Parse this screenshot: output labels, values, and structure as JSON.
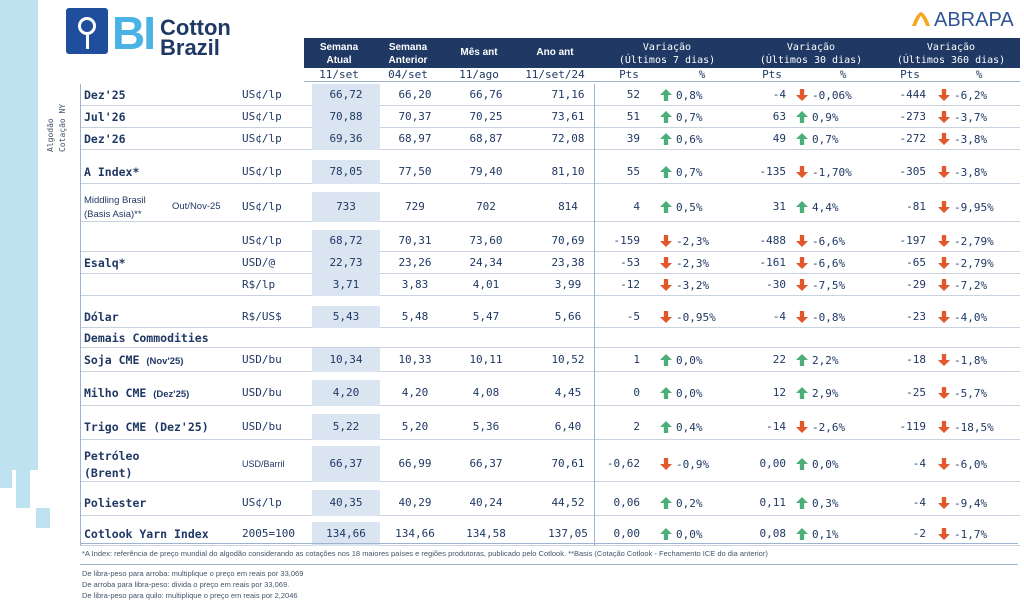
{
  "brand": {
    "bi": "BI",
    "cotton": "Cotton",
    "brazil": "Brazil",
    "abrapa": "ABRAPA"
  },
  "side_label": {
    "line1": "Algodão",
    "line2": "Cotação NY"
  },
  "headers": {
    "semana_atual": [
      "Semana",
      "Atual"
    ],
    "semana_anterior": [
      "Semana",
      "Anterior"
    ],
    "mes_ant": "Mês ant",
    "ano_ant": "Ano ant",
    "var7": [
      "Variação",
      "(Últimos 7 dias)"
    ],
    "var30": [
      "Variação",
      "(Últimos 30 dias)"
    ],
    "var360": [
      "Variação",
      "(Últimos 360 dias)"
    ]
  },
  "subheaders": {
    "d1": "11/set",
    "d2": "04/set",
    "d3": "11/ago",
    "d4": "11/set/24",
    "pts": "Pts",
    "pct": "%"
  },
  "rows": [
    {
      "label": "Dez'25",
      "unit": "US¢/lp",
      "v": [
        "66,72",
        "66,20",
        "66,76",
        "71,16"
      ],
      "p7": "52",
      "a7": "up",
      "v7": "0,8%",
      "p30": "-4",
      "a30": "down",
      "v30": "-0,06%",
      "p360": "-444",
      "a360": "down",
      "v360": "-6,2%"
    },
    {
      "label": "Jul'26",
      "unit": "US¢/lp",
      "v": [
        "70,88",
        "70,37",
        "70,25",
        "73,61"
      ],
      "p7": "51",
      "a7": "up",
      "v7": "0,7%",
      "p30": "63",
      "a30": "up",
      "v30": "0,9%",
      "p360": "-273",
      "a360": "down",
      "v360": "-3,7%"
    },
    {
      "label": "Dez'26",
      "unit": "US¢/lp",
      "v": [
        "69,36",
        "68,97",
        "68,87",
        "72,08"
      ],
      "p7": "39",
      "a7": "up",
      "v7": "0,6%",
      "p30": "49",
      "a30": "up",
      "v30": "0,7%",
      "p360": "-272",
      "a360": "down",
      "v360": "-3,8%"
    },
    {
      "label": "A Index*",
      "unit": "US¢/lp",
      "v": [
        "78,05",
        "77,50",
        "79,40",
        "81,10"
      ],
      "p7": "55",
      "a7": "up",
      "v7": "0,7%",
      "p30": "-135",
      "a30": "down",
      "v30": "-1,70%",
      "p360": "-305",
      "a360": "down",
      "v360": "-3,8%"
    },
    {
      "label": "Middling Brasil",
      "label2": "(Basis Asia)**",
      "extra": "Out/Nov-25",
      "unit": "US¢/lp",
      "v": [
        "733",
        "729",
        "702",
        "814"
      ],
      "p7": "4",
      "a7": "up",
      "v7": "0,5%",
      "p30": "31",
      "a30": "up",
      "v30": "4,4%",
      "p360": "-81",
      "a360": "down",
      "v360": "-9,95%"
    },
    {
      "label": "",
      "unit": "US¢/lp",
      "v": [
        "68,72",
        "70,31",
        "73,60",
        "70,69"
      ],
      "p7": "-159",
      "a7": "down",
      "v7": "-2,3%",
      "p30": "-488",
      "a30": "down",
      "v30": "-6,6%",
      "p360": "-197",
      "a360": "down",
      "v360": "-2,79%"
    },
    {
      "label": "Esalq*",
      "unit": "USD/@",
      "v": [
        "22,73",
        "23,26",
        "24,34",
        "23,38"
      ],
      "p7": "-53",
      "a7": "down",
      "v7": "-2,3%",
      "p30": "-161",
      "a30": "down",
      "v30": "-6,6%",
      "p360": "-65",
      "a360": "down",
      "v360": "-2,79%"
    },
    {
      "label": "",
      "unit": "R$/lp",
      "v": [
        "3,71",
        "3,83",
        "4,01",
        "3,99"
      ],
      "p7": "-12",
      "a7": "down",
      "v7": "-3,2%",
      "p30": "-30",
      "a30": "down",
      "v30": "-7,5%",
      "p360": "-29",
      "a360": "down",
      "v360": "-7,2%"
    },
    {
      "label": "Dólar",
      "unit": "R$/US$",
      "v": [
        "5,43",
        "5,48",
        "5,47",
        "5,66"
      ],
      "p7": "-5",
      "a7": "down",
      "v7": "-0,95%",
      "p30": "-4",
      "a30": "down",
      "v30": "-0,8%",
      "p360": "-23",
      "a360": "down",
      "v360": "-4,0%"
    },
    {
      "label": "Soja CME",
      "label_small": "(Nov'25)",
      "unit": "USD/bu",
      "v": [
        "10,34",
        "10,33",
        "10,11",
        "10,52"
      ],
      "p7": "1",
      "a7": "up",
      "v7": "0,0%",
      "p30": "22",
      "a30": "up",
      "v30": "2,2%",
      "p360": "-18",
      "a360": "down",
      "v360": "-1,8%"
    },
    {
      "label": "Milho CME",
      "label_small": "(Dez'25)",
      "unit": "USD/bu",
      "v": [
        "4,20",
        "4,20",
        "4,08",
        "4,45"
      ],
      "p7": "0",
      "a7": "up",
      "v7": "0,0%",
      "p30": "12",
      "a30": "up",
      "v30": "2,9%",
      "p360": "-25",
      "a360": "down",
      "v360": "-5,7%"
    },
    {
      "label": "Trigo CME (Dez'25)",
      "unit": "USD/bu",
      "v": [
        "5,22",
        "5,20",
        "5,36",
        "6,40"
      ],
      "p7": "2",
      "a7": "up",
      "v7": "0,4%",
      "p30": "-14",
      "a30": "down",
      "v30": "-2,6%",
      "p360": "-119",
      "a360": "down",
      "v360": "-18,5%"
    },
    {
      "label": "Petróleo",
      "label2": "(Brent)",
      "unit": "USD/Barril",
      "v": [
        "66,37",
        "66,99",
        "66,37",
        "70,61"
      ],
      "p7": "-0,62",
      "a7": "down",
      "v7": "-0,9%",
      "p30": "0,00",
      "a30": "up",
      "v30": "0,0%",
      "p360": "-4",
      "a360": "down",
      "v360": "-6,0%"
    },
    {
      "label": "Poliester",
      "unit": "US¢/lp",
      "v": [
        "40,35",
        "40,29",
        "40,24",
        "44,52"
      ],
      "p7": "0,06",
      "a7": "up",
      "v7": "0,2%",
      "p30": "0,11",
      "a30": "up",
      "v30": "0,3%",
      "p360": "-4",
      "a360": "down",
      "v360": "-9,4%"
    },
    {
      "label": "Cotlook Yarn Index",
      "unit": "2005=100",
      "v": [
        "134,66",
        "134,66",
        "134,58",
        "137,05"
      ],
      "p7": "0,00",
      "a7": "up",
      "v7": "0,0%",
      "p30": "0,08",
      "a30": "up",
      "v30": "0,1%",
      "p360": "-2",
      "a360": "down",
      "v360": "-1,7%"
    }
  ],
  "section_demais": "Demais Commodities",
  "footnotes": {
    "a_index": "*A Index: referência de preço mundial do algodão considerando as cotações nos 18 maiores países e regiões produtoras, publicado pelo Cotlook. **Basis (Cotação Cotlook - Fechamento ICE do dia anterior)",
    "conv1": "De libra-peso para arroba: multiplique o preço em reais por 33,069",
    "conv2": "De arroba para libra-peso: divida o preço em reais por 33,069.",
    "conv3": "De libra-peso para quilo: multiplique o preço em reais por 2,2046"
  },
  "colors": {
    "navy": "#1f3864",
    "light_blue": "#bfe2f0",
    "up": "#4caf7a",
    "down": "#e2572b"
  }
}
